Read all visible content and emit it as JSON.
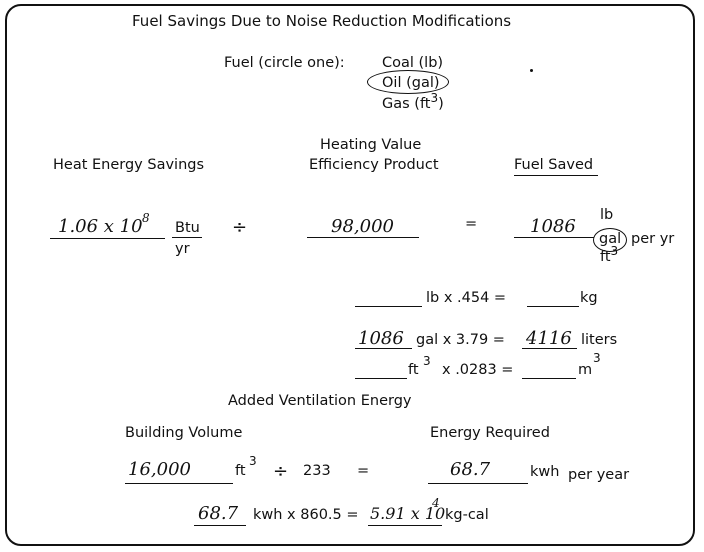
{
  "title": "Fuel Savings Due to Noise Reduction Modifications",
  "fuel": {
    "label": "Fuel (circle one):",
    "options": [
      "Coal (lb)",
      "Oil (gal)"
    ],
    "gas": "Gas (ft",
    "gas_exp": "3",
    "gas_close": ")"
  },
  "headers": {
    "heat_energy": "Heat Energy Savings",
    "hv_line1": "Heating Value",
    "hv_line2": "Efficiency Product",
    "fuel_saved": "Fuel Saved"
  },
  "equation": {
    "heat_value_base": "1.06 x 10",
    "heat_value_exp": "8",
    "unit_num": "Btu",
    "unit_den": "yr",
    "divide": "÷",
    "hv_value": "98,000",
    "equals": "=",
    "fuel_value": "1086",
    "fuel_units": [
      "lb",
      "gal"
    ],
    "fuel_ft": "ft",
    "fuel_ft_exp": "3",
    "per_yr": "per yr"
  },
  "conversions": {
    "lb_text": "lb x .454 =",
    "lb_unit": "kg",
    "gal_value": "1086",
    "gal_text": "gal x 3.79 =",
    "liters_value": "4116",
    "liters_unit": "liters",
    "ft_text": "ft",
    "ft_exp": "3",
    "ft_factor": "x .0283 =",
    "m_unit": "m",
    "m_exp": "3"
  },
  "ventilation": {
    "heading": "Added Ventilation Energy",
    "building_volume_label": "Building Volume",
    "energy_required_label": "Energy Required",
    "volume_value": "16,000",
    "ft_text": "ft",
    "ft_exp": "3",
    "divide": "÷",
    "divisor": "233",
    "equals": "=",
    "energy_value": "68.7",
    "energy_unit": "kwh",
    "per_year": "per year",
    "kwh_value": "68.7",
    "kwh_text": "kwh x 860.5 =",
    "kgcal_base": "5.91 x 10",
    "kgcal_exp": "4",
    "kgcal_unit": "kg-cal"
  }
}
